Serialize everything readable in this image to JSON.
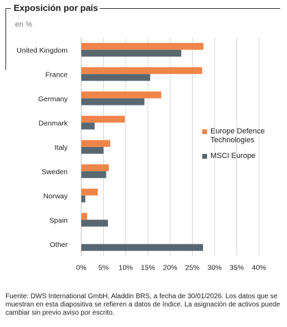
{
  "header": {
    "title": "Exposición por país",
    "subtitle": "en %"
  },
  "chart_data": {
    "type": "bar",
    "orientation": "horizontal",
    "categories": [
      "United Kingdom",
      "France",
      "Germany",
      "Denmark",
      "Italy",
      "Sweden",
      "Norway",
      "Spain",
      "Other"
    ],
    "series": [
      {
        "name": "Europe Defence Technologies",
        "color": "#f0854a",
        "values": [
          27.5,
          27.2,
          18.0,
          9.8,
          6.5,
          6.2,
          3.7,
          1.3,
          0
        ]
      },
      {
        "name": "MSCI Europe",
        "color": "#596770",
        "values": [
          22.5,
          15.5,
          14.2,
          3.0,
          5.0,
          5.6,
          0.9,
          6.0,
          27.4
        ]
      }
    ],
    "xlim": [
      0,
      40
    ],
    "xticks": [
      "0%",
      "5%",
      "10%",
      "15%",
      "20%",
      "25%",
      "30%",
      "35%",
      "40%"
    ],
    "grid": true,
    "legend_position": "right"
  },
  "footer": {
    "source": "Fuente: DWS International GmbH, Aladdin BRS, a fecha de 30/01/2026. Los datos que se muestran en esta diapositiva se refieren a datos de índice. La asignación de activos puede cambiar sin previo aviso por escrito."
  }
}
